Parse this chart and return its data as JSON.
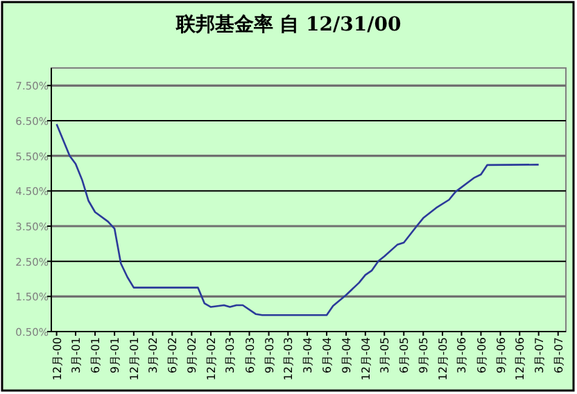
{
  "chart_data": {
    "type": "line",
    "title": "联邦基金率 自 12/31/00",
    "grid": "y",
    "marker": "none",
    "line_style": "solid",
    "xlim": [
      "2000-11-06",
      "2007-07-08"
    ],
    "xticks": [
      {
        "value": "2000-12",
        "label": "12月-00"
      },
      {
        "value": "2001-03",
        "label": "3月-01"
      },
      {
        "value": "2001-06",
        "label": "6月-01"
      },
      {
        "value": "2001-09",
        "label": "9月-01"
      },
      {
        "value": "2001-12",
        "label": "12月-01"
      },
      {
        "value": "2002-03",
        "label": "3月-02"
      },
      {
        "value": "2002-06",
        "label": "6月-02"
      },
      {
        "value": "2002-09",
        "label": "9月-02"
      },
      {
        "value": "2002-12",
        "label": "12月-02"
      },
      {
        "value": "2003-03",
        "label": "3月-03"
      },
      {
        "value": "2003-06",
        "label": "6月-03"
      },
      {
        "value": "2003-09",
        "label": "9月-03"
      },
      {
        "value": "2003-12",
        "label": "12月-03"
      },
      {
        "value": "2004-03",
        "label": "3月-04"
      },
      {
        "value": "2004-06",
        "label": "6月-04"
      },
      {
        "value": "2004-09",
        "label": "9月-04"
      },
      {
        "value": "2004-12",
        "label": "12月-04"
      },
      {
        "value": "2005-03",
        "label": "3月-05"
      },
      {
        "value": "2005-06",
        "label": "6月-05"
      },
      {
        "value": "2005-09",
        "label": "9月-05"
      },
      {
        "value": "2005-12",
        "label": "12月-05"
      },
      {
        "value": "2006-03",
        "label": "3月-06"
      },
      {
        "value": "2006-06",
        "label": "6月-06"
      },
      {
        "value": "2006-09",
        "label": "9月-06"
      },
      {
        "value": "2006-12",
        "label": "12月-06"
      },
      {
        "value": "2007-03",
        "label": "3月-07"
      },
      {
        "value": "2007-06",
        "label": "6月-07"
      }
    ],
    "ylim": [
      0.5,
      8.0
    ],
    "yticks": [
      {
        "value": 0.5,
        "label": "0.50%"
      },
      {
        "value": 1.5,
        "label": "1.50%"
      },
      {
        "value": 2.5,
        "label": "2.50%"
      },
      {
        "value": 3.5,
        "label": "3.50%"
      },
      {
        "value": 4.5,
        "label": "4.50%"
      },
      {
        "value": 5.5,
        "label": "5.50%"
      },
      {
        "value": 6.5,
        "label": "6.50%"
      },
      {
        "value": 7.5,
        "label": "7.50%"
      }
    ],
    "x": [
      "2000-12",
      "2001-02",
      "2001-03",
      "2001-04",
      "2001-05",
      "2001-06",
      "2001-08",
      "2001-09",
      "2001-10",
      "2001-11",
      "2001-12",
      "2002-10",
      "2002-11",
      "2002-12",
      "2003-02",
      "2003-03",
      "2003-04",
      "2003-05",
      "2003-07",
      "2003-08",
      "2004-06",
      "2004-07",
      "2004-09",
      "2004-11",
      "2004-12",
      "2005-01",
      "2005-02",
      "2005-03",
      "2005-05",
      "2005-06",
      "2005-08",
      "2005-09",
      "2005-11",
      "2006-01",
      "2006-02",
      "2006-05",
      "2006-06",
      "2006-07",
      "2007-03"
    ],
    "series": [
      {
        "color": "#2b3a9a",
        "values": [
          6.4,
          5.5,
          5.27,
          4.81,
          4.22,
          3.9,
          3.63,
          3.43,
          2.44,
          2.05,
          1.75,
          1.75,
          1.3,
          1.2,
          1.25,
          1.2,
          1.25,
          1.25,
          1.0,
          0.97,
          0.97,
          1.23,
          1.54,
          1.89,
          2.11,
          2.24,
          2.51,
          2.64,
          2.97,
          3.03,
          3.5,
          3.73,
          4.02,
          4.25,
          4.48,
          4.88,
          4.97,
          5.24,
          5.25
        ]
      }
    ]
  }
}
